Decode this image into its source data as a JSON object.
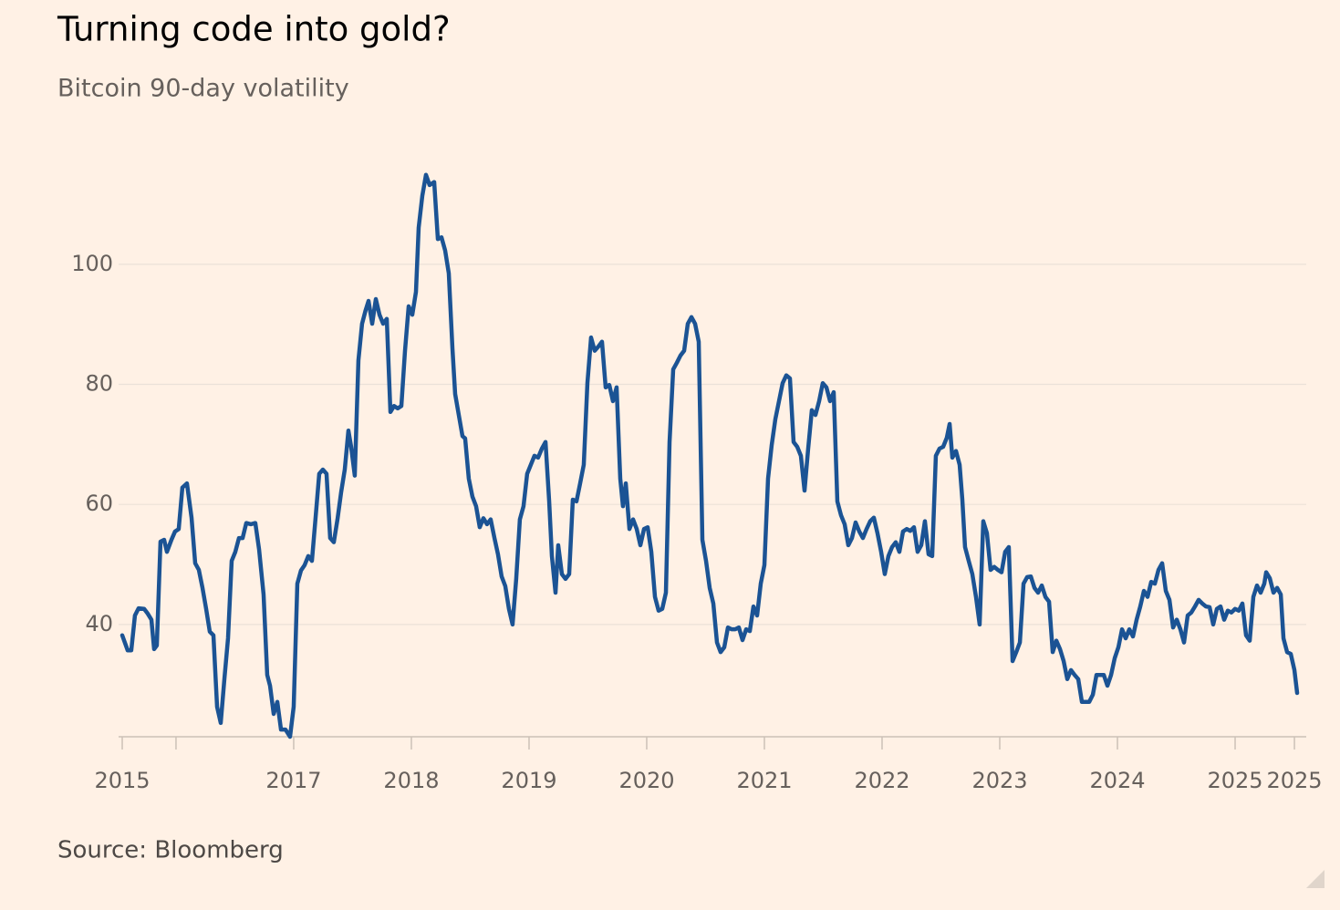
{
  "chart_data": {
    "type": "line",
    "title": "Turning code into gold?",
    "subtitle": "Bitcoin 90-day volatility",
    "source": "Source: Bloomberg",
    "color": "#1b5394",
    "grid": true,
    "xlim": [
      2015.543,
      2025.527
    ],
    "ylim": [
      21.3,
      122
    ],
    "yticks": [
      40,
      60,
      80,
      100
    ],
    "xticks": [
      {
        "value": 2015.543,
        "label": "2015"
      },
      {
        "value": 2016,
        "label": null
      },
      2017,
      2018,
      2019,
      2020,
      2021,
      2022,
      2023,
      2024,
      2025,
      {
        "value": 2025.504,
        "label": "2025"
      }
    ],
    "x": [
      2015.543,
      2015.589,
      2015.62,
      2015.651,
      2015.682,
      2015.729,
      2015.76,
      2015.791,
      2015.814,
      2015.837,
      2015.868,
      2015.899,
      2015.923,
      2015.961,
      2015.992,
      2016.023,
      2016.054,
      2016.093,
      2016.132,
      2016.163,
      2016.194,
      2016.225,
      2016.256,
      2016.287,
      2016.318,
      2016.349,
      2016.38,
      2016.411,
      2016.442,
      2016.473,
      2016.504,
      2016.535,
      2016.566,
      2016.597,
      2016.636,
      2016.674,
      2016.706,
      2016.744,
      2016.775,
      2016.799,
      2016.83,
      2016.861,
      2016.892,
      2016.93,
      2016.969,
      2017.0,
      2017.031,
      2017.062,
      2017.093,
      2017.124,
      2017.155,
      2017.186,
      2017.217,
      2017.248,
      2017.279,
      2017.31,
      2017.341,
      2017.372,
      2017.403,
      2017.434,
      2017.465,
      2017.488,
      2017.519,
      2017.55,
      2017.581,
      2017.612,
      2017.636,
      2017.667,
      2017.698,
      2017.729,
      2017.76,
      2017.791,
      2017.822,
      2017.853,
      2017.884,
      2017.915,
      2017.946,
      2017.977,
      2018.008,
      2018.039,
      2018.062,
      2018.093,
      2018.124,
      2018.155,
      2018.194,
      2018.225,
      2018.256,
      2018.287,
      2018.318,
      2018.349,
      2018.372,
      2018.403,
      2018.434,
      2018.457,
      2018.488,
      2018.519,
      2018.55,
      2018.581,
      2018.612,
      2018.643,
      2018.674,
      2018.706,
      2018.736,
      2018.767,
      2018.798,
      2018.829,
      2018.86,
      2018.891,
      2018.922,
      2018.953,
      2018.984,
      2019.015,
      2019.046,
      2019.077,
      2019.109,
      2019.14,
      2019.171,
      2019.194,
      2019.225,
      2019.248,
      2019.279,
      2019.31,
      2019.341,
      2019.372,
      2019.403,
      2019.434,
      2019.465,
      2019.496,
      2019.527,
      2019.558,
      2019.589,
      2019.62,
      2019.651,
      2019.682,
      2019.713,
      2019.744,
      2019.775,
      2019.798,
      2019.822,
      2019.853,
      2019.884,
      2019.915,
      2019.946,
      2019.977,
      2020.008,
      2020.039,
      2020.07,
      2020.101,
      2020.132,
      2020.163,
      2020.194,
      2020.225,
      2020.256,
      2020.287,
      2020.318,
      2020.349,
      2020.38,
      2020.411,
      2020.442,
      2020.473,
      2020.504,
      2020.535,
      2020.566,
      2020.597,
      2020.628,
      2020.659,
      2020.69,
      2020.721,
      2020.752,
      2020.783,
      2020.814,
      2020.845,
      2020.876,
      2020.907,
      2020.938,
      2020.969,
      2021.0,
      2021.031,
      2021.062,
      2021.093,
      2021.124,
      2021.155,
      2021.186,
      2021.217,
      2021.248,
      2021.279,
      2021.31,
      2021.341,
      2021.372,
      2021.403,
      2021.434,
      2021.465,
      2021.496,
      2021.527,
      2021.558,
      2021.589,
      2021.62,
      2021.651,
      2021.682,
      2021.713,
      2021.744,
      2021.775,
      2021.806,
      2021.837,
      2021.868,
      2021.899,
      2021.93,
      2021.961,
      2021.992,
      2022.023,
      2022.054,
      2022.085,
      2022.116,
      2022.147,
      2022.178,
      2022.209,
      2022.24,
      2022.271,
      2022.302,
      2022.333,
      2022.364,
      2022.395,
      2022.426,
      2022.457,
      2022.488,
      2022.519,
      2022.55,
      2022.574,
      2022.597,
      2022.628,
      2022.659,
      2022.682,
      2022.705,
      2022.736,
      2022.767,
      2022.798,
      2022.829,
      2022.86,
      2022.891,
      2022.922,
      2022.953,
      2022.984,
      2023.015,
      2023.046,
      2023.077,
      2023.109,
      2023.14,
      2023.171,
      2023.202,
      2023.233,
      2023.264,
      2023.295,
      2023.326,
      2023.357,
      2023.388,
      2023.419,
      2023.45,
      2023.481,
      2023.512,
      2023.543,
      2023.574,
      2023.605,
      2023.636,
      2023.667,
      2023.698,
      2023.729,
      2023.76,
      2023.791,
      2023.822,
      2023.853,
      2023.884,
      2023.915,
      2023.946,
      2023.977,
      2024.008,
      2024.039,
      2024.07,
      2024.101,
      2024.132,
      2024.163,
      2024.194,
      2024.225,
      2024.256,
      2024.287,
      2024.318,
      2024.349,
      2024.38,
      2024.411,
      2024.442,
      2024.473,
      2024.504,
      2024.535,
      2024.566,
      2024.597,
      2024.628,
      2024.659,
      2024.69,
      2024.721,
      2024.752,
      2024.783,
      2024.814,
      2024.845,
      2024.876,
      2024.907,
      2024.938,
      2024.969,
      2025.0,
      2025.031,
      2025.062,
      2025.093,
      2025.124,
      2025.155,
      2025.186,
      2025.217,
      2025.248,
      2025.264,
      2025.295,
      2025.326,
      2025.357,
      2025.388,
      2025.411,
      2025.442,
      2025.473,
      2025.504,
      2025.527
    ],
    "values": [
      38.2,
      35.7,
      35.7,
      41.5,
      42.7,
      42.6,
      41.8,
      40.8,
      35.9,
      36.5,
      53.8,
      54.1,
      52.1,
      54.1,
      55.5,
      55.9,
      62.8,
      63.5,
      57.8,
      50.2,
      49.1,
      46.1,
      42.6,
      38.8,
      38.2,
      26.3,
      23.6,
      30.9,
      37.7,
      50.6,
      52.1,
      54.4,
      54.4,
      56.9,
      56.7,
      56.9,
      52.5,
      45.0,
      31.6,
      29.8,
      25.1,
      27.1,
      22.5,
      22.5,
      21.3,
      26.3,
      46.8,
      49.0,
      49.9,
      51.4,
      50.6,
      57.8,
      65.1,
      65.8,
      65.1,
      54.4,
      53.7,
      57.5,
      62.0,
      65.8,
      72.3,
      69.6,
      64.8,
      84.0,
      90.1,
      92.4,
      93.9,
      90.1,
      94.2,
      91.6,
      90.1,
      90.9,
      75.4,
      76.4,
      76.0,
      76.4,
      85.6,
      93.0,
      91.6,
      95.4,
      106.1,
      111.4,
      114.9,
      113.2,
      113.7,
      104.2,
      104.5,
      102.3,
      98.5,
      86.0,
      78.4,
      74.9,
      71.4,
      71.0,
      64.3,
      61.3,
      59.7,
      56.2,
      57.7,
      56.7,
      57.5,
      54.4,
      51.7,
      48.0,
      46.4,
      42.6,
      40.0,
      47.6,
      57.5,
      59.7,
      65.1,
      66.6,
      68.1,
      67.8,
      69.3,
      70.4,
      60.5,
      51.4,
      45.3,
      53.2,
      48.4,
      47.6,
      48.4,
      60.8,
      60.5,
      63.5,
      66.6,
      80.2,
      87.8,
      85.6,
      86.3,
      87.1,
      79.5,
      79.9,
      77.2,
      79.5,
      64.3,
      59.7,
      63.5,
      55.9,
      57.5,
      55.9,
      53.2,
      55.9,
      56.2,
      52.1,
      44.6,
      42.3,
      42.6,
      45.3,
      70.4,
      82.5,
      83.6,
      84.8,
      85.6,
      90.1,
      91.2,
      90.1,
      87.1,
      54.1,
      50.6,
      46.1,
      43.5,
      37.0,
      35.4,
      36.2,
      39.5,
      39.2,
      39.2,
      39.5,
      37.4,
      39.2,
      38.9,
      43.0,
      41.5,
      46.8,
      49.9,
      64.3,
      69.9,
      74.2,
      77.2,
      80.2,
      81.5,
      81.0,
      70.4,
      69.6,
      68.1,
      62.3,
      69.3,
      75.7,
      74.9,
      77.2,
      80.2,
      79.5,
      77.2,
      78.7,
      60.5,
      58.2,
      56.7,
      53.2,
      54.4,
      57.0,
      55.5,
      54.4,
      55.9,
      57.2,
      57.8,
      55.2,
      52.1,
      48.4,
      51.4,
      52.9,
      53.7,
      52.1,
      55.5,
      55.9,
      55.6,
      56.2,
      52.1,
      53.2,
      57.2,
      51.7,
      51.4,
      68.1,
      69.3,
      69.6,
      71.1,
      73.4,
      67.8,
      68.9,
      66.6,
      60.8,
      52.9,
      50.6,
      48.4,
      44.6,
      40.0,
      57.2,
      55.2,
      49.1,
      49.6,
      49.1,
      48.7,
      52.1,
      52.9,
      33.9,
      35.4,
      37.0,
      46.8,
      47.9,
      48.0,
      46.1,
      45.3,
      46.5,
      44.6,
      43.8,
      35.4,
      37.3,
      35.9,
      33.9,
      30.9,
      32.4,
      31.6,
      30.9,
      27.1,
      27.1,
      27.1,
      28.3,
      31.6,
      31.6,
      31.6,
      29.8,
      31.6,
      34.4,
      36.2,
      39.2,
      37.7,
      39.2,
      38.0,
      40.8,
      43.0,
      45.6,
      44.6,
      47.1,
      46.8,
      49.1,
      50.2,
      45.6,
      44.1,
      39.5,
      40.8,
      39.2,
      37.0,
      41.5,
      42.0,
      43.0,
      44.1,
      43.5,
      43.0,
      42.9,
      40.0,
      42.6,
      43.0,
      40.8,
      42.3,
      42.0,
      42.6,
      42.3,
      43.5,
      38.2,
      37.3,
      44.6,
      46.5,
      45.3,
      46.8,
      48.7,
      47.7,
      45.3,
      46.1,
      45.0,
      37.7,
      35.4,
      35.1,
      32.4,
      28.6
    ]
  }
}
